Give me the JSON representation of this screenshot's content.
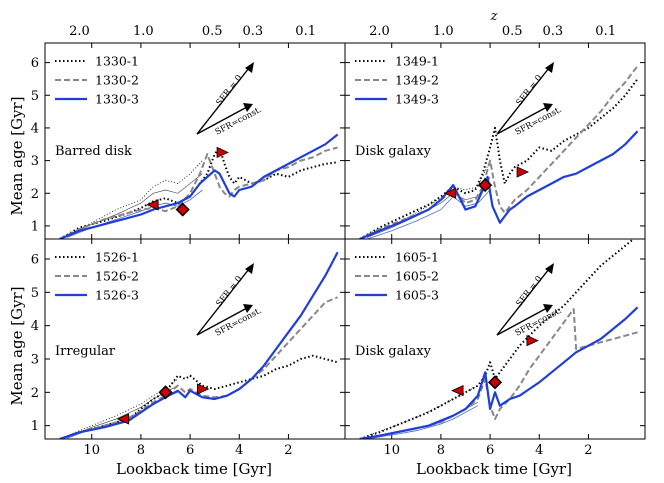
{
  "figure": {
    "top_axis_label": "z",
    "top_ticks": [
      "2.0",
      "1.0",
      "0.5",
      "0.3",
      "0.1"
    ],
    "top_tick_lookback": [
      10.5,
      7.9,
      5.1,
      3.45,
      1.3
    ],
    "ylabel": "Mean age [Gyr]",
    "xlabel": "Lookback time [Gyr]",
    "xlim": [
      11.9,
      -0.3
    ],
    "ylim": [
      0.6,
      6.6
    ],
    "x_ticks": [
      10,
      8,
      6,
      4,
      2
    ],
    "y_ticks": [
      1,
      2,
      3,
      4,
      5,
      6
    ],
    "arrow_labels": {
      "upper": "SFR = 0",
      "lower": "SFR=const."
    },
    "colors": {
      "series1": "#000000",
      "series2": "#888888",
      "series3": "#1f3fd8",
      "thin": "#555555",
      "thin_blue": "#4a66e0",
      "marker_diamond": "#cc0000",
      "marker_tri": "#cc0000"
    }
  },
  "chart_data": [
    {
      "type": "line",
      "panel": "top-left",
      "annotation": "Barred disk",
      "legend": [
        "1330-1",
        "1330-2",
        "1330-3"
      ],
      "series": [
        {
          "name": "1330-1",
          "x": [
            11.3,
            10.5,
            9.5,
            8.5,
            8.0,
            7.5,
            7.0,
            6.5,
            6.0,
            5.6,
            5.3,
            5.0,
            4.8,
            4.6,
            4.4,
            4.2,
            4.0,
            3.5,
            3.0,
            2.5,
            2.0,
            1.5,
            1.0,
            0.5,
            0.0
          ],
          "y": [
            0.6,
            0.95,
            1.15,
            1.4,
            1.55,
            1.75,
            1.85,
            1.7,
            1.9,
            2.3,
            2.6,
            3.2,
            3.4,
            2.9,
            2.5,
            2.3,
            2.5,
            2.3,
            2.4,
            2.6,
            2.5,
            2.7,
            2.8,
            2.9,
            2.95
          ]
        },
        {
          "name": "1330-2",
          "x": [
            11.3,
            10.5,
            9.5,
            8.5,
            8.0,
            7.5,
            7.0,
            6.5,
            6.0,
            5.6,
            5.3,
            5.0,
            4.8,
            4.6,
            4.4,
            4.2,
            4.0,
            3.5,
            3.0,
            2.5,
            2.0,
            1.5,
            1.0,
            0.5,
            0.0
          ],
          "y": [
            0.6,
            0.9,
            1.2,
            1.4,
            1.5,
            1.55,
            1.45,
            1.6,
            2.0,
            2.6,
            3.2,
            2.6,
            2.2,
            2.0,
            1.9,
            2.1,
            2.2,
            2.3,
            2.4,
            2.7,
            2.8,
            3.0,
            3.1,
            3.3,
            3.4
          ]
        },
        {
          "name": "1330-3",
          "x": [
            11.3,
            10.5,
            9.5,
            8.5,
            8.0,
            7.5,
            7.0,
            6.5,
            6.0,
            5.6,
            5.3,
            5.0,
            4.8,
            4.6,
            4.4,
            4.2,
            4.0,
            3.5,
            3.0,
            2.5,
            2.0,
            1.5,
            1.0,
            0.5,
            0.0
          ],
          "y": [
            0.6,
            0.85,
            1.05,
            1.25,
            1.35,
            1.5,
            1.6,
            1.7,
            1.9,
            2.3,
            2.5,
            2.7,
            2.6,
            2.3,
            2.0,
            1.9,
            2.1,
            2.2,
            2.5,
            2.7,
            2.9,
            3.1,
            3.3,
            3.5,
            3.8
          ]
        }
      ],
      "thin_series": [
        {
          "name": "thin-1",
          "x": [
            11.0,
            10.0,
            9.0,
            8.0,
            7.5,
            7.0,
            6.5,
            6.0,
            5.5
          ],
          "y": [
            0.7,
            1.1,
            1.5,
            1.8,
            2.2,
            2.4,
            2.3,
            2.6,
            3.0
          ]
        },
        {
          "name": "thin-2",
          "x": [
            11.0,
            10.0,
            9.0,
            8.0,
            7.5,
            7.0,
            6.5,
            6.0,
            5.5
          ],
          "y": [
            0.7,
            1.05,
            1.35,
            1.7,
            2.0,
            2.1,
            2.0,
            2.3,
            2.6
          ]
        },
        {
          "name": "thin-3",
          "x": [
            11.0,
            10.0,
            9.0,
            8.0,
            7.5,
            7.0,
            6.5,
            6.0,
            5.5
          ],
          "y": [
            0.65,
            0.95,
            1.2,
            1.45,
            1.6,
            1.7,
            1.6,
            1.8,
            2.1
          ]
        }
      ],
      "markers": [
        {
          "shape": "tri-left",
          "x": 7.5,
          "y": 1.65
        },
        {
          "shape": "diamond",
          "x": 6.3,
          "y": 1.5
        },
        {
          "shape": "tri-right",
          "x": 4.7,
          "y": 3.25
        }
      ]
    },
    {
      "type": "line",
      "panel": "top-right",
      "annotation": "Disk galaxy",
      "legend": [
        "1349-1",
        "1349-2",
        "1349-3"
      ],
      "series": [
        {
          "name": "1349-1",
          "x": [
            11.3,
            10.5,
            9.5,
            8.5,
            8.0,
            7.5,
            7.0,
            6.6,
            6.3,
            6.0,
            5.8,
            5.6,
            5.4,
            5.2,
            5.0,
            4.5,
            4.0,
            3.5,
            3.0,
            2.5,
            2.0,
            1.5,
            1.0,
            0.5,
            0.0
          ],
          "y": [
            0.6,
            0.95,
            1.3,
            1.65,
            1.9,
            2.2,
            2.0,
            2.1,
            2.6,
            3.4,
            4.0,
            3.0,
            2.3,
            2.6,
            2.8,
            3.0,
            3.4,
            3.3,
            3.6,
            3.8,
            4.0,
            4.3,
            4.6,
            5.0,
            5.5
          ]
        },
        {
          "name": "1349-2",
          "x": [
            11.3,
            10.5,
            9.5,
            8.5,
            8.0,
            7.5,
            7.0,
            6.6,
            6.3,
            6.0,
            5.8,
            5.6,
            5.4,
            5.2,
            5.0,
            4.5,
            4.0,
            3.5,
            3.0,
            2.5,
            2.0,
            1.5,
            1.0,
            0.5,
            0.0
          ],
          "y": [
            0.6,
            0.9,
            1.2,
            1.5,
            1.8,
            2.1,
            1.7,
            1.8,
            2.2,
            3.0,
            2.2,
            1.6,
            1.4,
            1.6,
            1.8,
            2.1,
            2.5,
            2.9,
            3.3,
            3.7,
            4.1,
            4.5,
            5.0,
            5.4,
            5.9
          ]
        },
        {
          "name": "1349-3",
          "x": [
            11.3,
            10.5,
            9.5,
            8.5,
            8.0,
            7.5,
            7.2,
            7.0,
            6.6,
            6.3,
            6.1,
            5.9,
            5.6,
            5.4,
            5.2,
            5.0,
            4.5,
            4.0,
            3.5,
            3.0,
            2.5,
            2.0,
            1.5,
            1.0,
            0.5,
            0.0
          ],
          "y": [
            0.6,
            0.85,
            1.15,
            1.5,
            1.8,
            2.25,
            1.8,
            1.5,
            1.6,
            2.1,
            2.5,
            1.6,
            1.1,
            1.3,
            1.5,
            1.6,
            1.9,
            2.1,
            2.3,
            2.5,
            2.6,
            2.8,
            3.0,
            3.2,
            3.5,
            3.9
          ]
        }
      ],
      "thin_series": [
        {
          "name": "thin-1",
          "x": [
            11.0,
            10.0,
            9.0,
            8.0,
            7.5,
            7.0,
            6.5,
            6.0
          ],
          "y": [
            0.65,
            1.0,
            1.4,
            1.85,
            2.2,
            2.1,
            2.2,
            3.0
          ]
        },
        {
          "name": "thin-2",
          "x": [
            11.0,
            10.0,
            9.0,
            8.0,
            7.5,
            7.0,
            6.5,
            6.0
          ],
          "y": [
            0.65,
            0.95,
            1.3,
            1.7,
            2.0,
            1.8,
            1.9,
            2.5
          ]
        },
        {
          "name": "thin-3",
          "x": [
            11.0,
            10.0,
            9.0,
            8.0,
            7.5,
            7.0,
            6.5,
            6.0
          ],
          "y": [
            0.6,
            0.85,
            1.15,
            1.5,
            1.9,
            1.6,
            1.7,
            2.1
          ]
        }
      ],
      "markers": [
        {
          "shape": "tri-left",
          "x": 7.6,
          "y": 2.0
        },
        {
          "shape": "diamond",
          "x": 6.2,
          "y": 2.25
        },
        {
          "shape": "tri-right",
          "x": 4.7,
          "y": 2.65
        }
      ]
    },
    {
      "type": "line",
      "panel": "bottom-left",
      "annotation": "Irregular",
      "legend": [
        "1526-1",
        "1526-2",
        "1526-3"
      ],
      "series": [
        {
          "name": "1526-1",
          "x": [
            11.3,
            10.5,
            9.5,
            8.5,
            8.0,
            7.5,
            7.0,
            6.5,
            6.2,
            6.0,
            5.5,
            5.0,
            4.5,
            4.0,
            3.5,
            3.0,
            2.5,
            2.0,
            1.5,
            1.0,
            0.5,
            0.0
          ],
          "y": [
            0.6,
            0.8,
            1.0,
            1.2,
            1.5,
            1.8,
            2.0,
            2.5,
            2.4,
            2.5,
            2.2,
            2.1,
            2.2,
            2.3,
            2.4,
            2.5,
            2.7,
            2.8,
            3.0,
            3.1,
            3.0,
            2.9
          ]
        },
        {
          "name": "1526-2",
          "x": [
            11.3,
            10.5,
            9.5,
            8.5,
            8.0,
            7.5,
            7.0,
            6.5,
            6.2,
            6.0,
            5.5,
            5.0,
            4.5,
            4.0,
            3.5,
            3.0,
            2.5,
            2.0,
            1.5,
            1.0,
            0.5,
            0.0
          ],
          "y": [
            0.6,
            0.8,
            1.0,
            1.2,
            1.45,
            1.7,
            1.9,
            2.2,
            2.0,
            2.1,
            1.9,
            1.85,
            1.9,
            2.1,
            2.4,
            2.7,
            3.1,
            3.5,
            3.9,
            4.3,
            4.7,
            4.85
          ]
        },
        {
          "name": "1526-3",
          "x": [
            11.3,
            10.5,
            9.5,
            8.5,
            8.0,
            7.5,
            7.0,
            6.5,
            6.2,
            6.0,
            5.5,
            5.0,
            4.5,
            4.0,
            3.5,
            3.0,
            2.5,
            2.0,
            1.5,
            1.0,
            0.5,
            0.0
          ],
          "y": [
            0.6,
            0.8,
            0.95,
            1.15,
            1.4,
            1.65,
            1.85,
            2.05,
            1.85,
            2.05,
            1.85,
            1.8,
            1.9,
            2.1,
            2.4,
            2.8,
            3.3,
            3.8,
            4.3,
            4.9,
            5.5,
            6.2
          ]
        }
      ],
      "thin_series": [
        {
          "name": "thin-1",
          "x": [
            11.0,
            10.0,
            9.0,
            8.0,
            7.5,
            7.0,
            6.5
          ],
          "y": [
            0.7,
            1.0,
            1.3,
            1.65,
            1.9,
            2.1,
            2.4
          ]
        },
        {
          "name": "thin-2",
          "x": [
            11.0,
            10.0,
            9.0,
            8.0,
            7.5,
            7.0,
            6.5
          ],
          "y": [
            0.65,
            0.95,
            1.2,
            1.55,
            1.8,
            2.0,
            2.2
          ]
        },
        {
          "name": "thin-3",
          "x": [
            11.0,
            10.0,
            9.0,
            8.0,
            7.5,
            7.0,
            6.5
          ],
          "y": [
            0.62,
            0.9,
            1.1,
            1.4,
            1.65,
            1.85,
            2.0
          ]
        }
      ],
      "markers": [
        {
          "shape": "tri-left",
          "x": 8.7,
          "y": 1.2
        },
        {
          "shape": "diamond",
          "x": 7.0,
          "y": 2.0
        },
        {
          "shape": "tri-right",
          "x": 5.5,
          "y": 2.1
        }
      ]
    },
    {
      "type": "line",
      "panel": "bottom-right",
      "annotation": "Disk galaxy",
      "legend": [
        "1605-1",
        "1605-2",
        "1605-3"
      ],
      "series": [
        {
          "name": "1605-1",
          "x": [
            11.3,
            10.5,
            9.5,
            8.5,
            8.0,
            7.5,
            7.0,
            6.5,
            6.2,
            6.0,
            5.8,
            5.6,
            5.2,
            4.8,
            4.4,
            4.0,
            3.5,
            3.0,
            2.5,
            2.0,
            1.5,
            1.0,
            0.5,
            0.0
          ],
          "y": [
            0.6,
            0.8,
            1.1,
            1.4,
            1.6,
            1.8,
            2.0,
            2.2,
            2.5,
            2.9,
            2.4,
            2.6,
            3.0,
            3.4,
            3.7,
            4.0,
            4.3,
            4.6,
            5.0,
            5.4,
            5.8,
            6.1,
            6.4,
            6.7
          ]
        },
        {
          "name": "1605-2",
          "x": [
            11.3,
            10.5,
            9.5,
            8.5,
            8.0,
            7.5,
            7.0,
            6.5,
            6.2,
            6.0,
            5.8,
            5.6,
            5.2,
            4.8,
            4.4,
            4.0,
            3.5,
            3.0,
            2.6,
            2.5,
            2.0,
            1.5,
            1.0,
            0.5,
            0.0
          ],
          "y": [
            0.6,
            0.7,
            0.85,
            1.0,
            1.1,
            1.3,
            1.5,
            1.8,
            2.4,
            1.6,
            1.2,
            1.5,
            1.8,
            2.2,
            2.7,
            3.1,
            3.6,
            4.1,
            4.5,
            3.3,
            3.4,
            3.5,
            3.6,
            3.7,
            3.8
          ]
        },
        {
          "name": "1605-3",
          "x": [
            11.3,
            10.5,
            9.5,
            8.5,
            8.0,
            7.5,
            7.0,
            6.5,
            6.2,
            6.0,
            5.8,
            5.6,
            5.2,
            4.8,
            4.4,
            4.0,
            3.5,
            3.0,
            2.5,
            2.0,
            1.5,
            1.0,
            0.5,
            0.0
          ],
          "y": [
            0.6,
            0.7,
            0.85,
            1.0,
            1.15,
            1.3,
            1.5,
            1.9,
            2.6,
            1.5,
            2.0,
            1.6,
            1.8,
            1.9,
            2.1,
            2.3,
            2.6,
            2.9,
            3.2,
            3.4,
            3.6,
            3.9,
            4.2,
            4.55
          ]
        }
      ],
      "thin_series": [
        {
          "name": "thin-1",
          "x": [
            11.0,
            10.0,
            9.0,
            8.0,
            7.5,
            7.0,
            6.5
          ],
          "y": [
            0.7,
            0.95,
            1.25,
            1.6,
            1.8,
            2.0,
            2.2
          ]
        },
        {
          "name": "thin-2",
          "x": [
            11.0,
            10.0,
            9.0,
            8.0,
            7.5,
            7.0,
            6.5
          ],
          "y": [
            0.62,
            0.75,
            0.9,
            1.1,
            1.3,
            1.5,
            1.7
          ]
        },
        {
          "name": "thin-3",
          "x": [
            11.0,
            10.0,
            9.0,
            8.0,
            7.5,
            7.0,
            6.5
          ],
          "y": [
            0.6,
            0.72,
            0.85,
            1.05,
            1.2,
            1.4,
            1.6
          ]
        }
      ],
      "markers": [
        {
          "shape": "tri-left",
          "x": 7.3,
          "y": 2.05
        },
        {
          "shape": "diamond",
          "x": 5.8,
          "y": 2.3
        },
        {
          "shape": "tri-right",
          "x": 4.3,
          "y": 3.55
        }
      ]
    }
  ]
}
